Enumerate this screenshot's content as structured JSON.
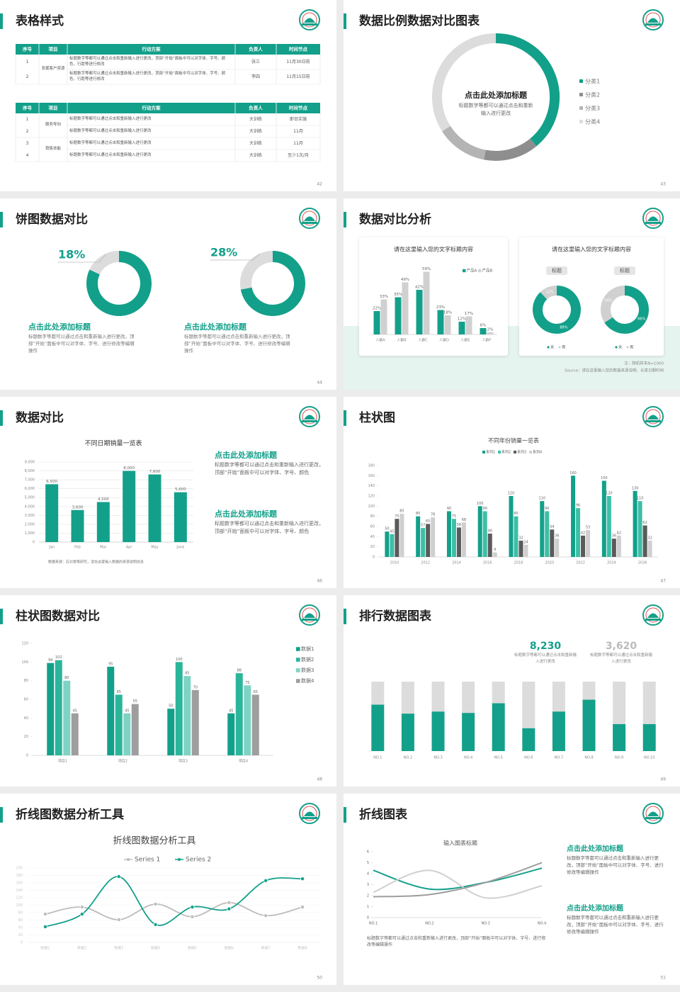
{
  "slides": [
    {
      "title": "表格样式",
      "page": "42",
      "tables": [
        {
          "header": [
            "序号",
            "项目",
            "行动方案",
            "负责人",
            "时间节点"
          ],
          "rows": [
            [
              "1",
              "发掘客户资源",
              "标题数字等都可以通过点击和重新输入进行更改，顶部“开始”面板中可以对字体、字号、颜色、行距等进行修改",
              "张三",
              "11月30日前"
            ],
            [
              "2",
              null,
              "标题数字等都可以通过点击和重新输入进行更改，顶部“开始”面板中可以对字体、字号、颜色、行距等进行修改",
              "李四",
              "11月15日前"
            ]
          ]
        },
        {
          "header": [
            "序号",
            "项目",
            "行动方案",
            "负责人",
            "时间节点"
          ],
          "rows": [
            [
              "1",
              "服务导向",
              "标题数字等都可以通过点击和重新输入进行更改",
              "大训练",
              "即日实施"
            ],
            [
              "2",
              null,
              "标题数字等都可以通过点击和重新输入进行更改",
              "大训练",
              "11月"
            ],
            [
              "3",
              "销售技能",
              "标题数字等都可以通过点击和重新输入进行更改",
              "大训练",
              "11月"
            ],
            [
              "4",
              null,
              "标题数字等都可以通过点击和重新输入进行更改",
              "大训练",
              "至少1次/月"
            ]
          ]
        }
      ]
    },
    {
      "title": "数据比例数据对比图表",
      "page": "43",
      "chart": {
        "type": "donut",
        "center_title": "点击此处添加标题",
        "center_text": "标题数字等都可以通过点击和重新输入进行更改",
        "categories": [
          "分类1",
          "分类2",
          "分类3",
          "分类4"
        ],
        "values": [
          39,
          14,
          13,
          34
        ],
        "colors": [
          "#13a08a",
          "#8e8e8e",
          "#b4b4b4",
          "#dcdcdc"
        ]
      }
    },
    {
      "title": "饼图数据对比",
      "page": "44",
      "color": "#13a08a",
      "value_color": "#dcdcdc",
      "items": [
        {
          "value": 18,
          "value_label": "18%",
          "heading": "点击此处添加标题",
          "text": "标题数字等都可以通过点击和重新输入进行更改，顶部“开始”面板中可以对字体、字号、进行修改等编辑操作"
        },
        {
          "value": 28,
          "value_label": "28%",
          "heading": "点击此处添加标题",
          "text": "标题数字等都可以通过点击和重新输入进行更改，顶部“开始”面板中可以对字体、字号、进行修改等编辑操作"
        }
      ]
    },
    {
      "title": "数据对比分析",
      "page": "45",
      "bar_chart": {
        "type": "bar",
        "title": "请在这里输入您的文字标题内容",
        "categories": [
          "人群A",
          "人群B",
          "人群C",
          "人群D",
          "人群E",
          "人群F"
        ],
        "series": [
          {
            "name": "产品A",
            "color": "#13a08a",
            "values": [
              22,
              35,
              42,
              23,
              12,
              6
            ],
            "value_labels": [
              "22%",
              "35%",
              "42%",
              "23%",
              "12%",
              "6%"
            ]
          },
          {
            "name": "产品B",
            "color": "#d0d0d0",
            "values": [
              33,
              49,
              59,
              18,
              17,
              2
            ],
            "value_labels": [
              "33%",
              "49%",
              "59%",
              "18%",
              "17%",
              "2%"
            ]
          }
        ],
        "ylim": [
          0,
          60
        ]
      },
      "donut_chart": {
        "type": "donut",
        "title": "请在这里输入您的文字标题内容",
        "colors": [
          "#13a08a",
          "#d0d0d0"
        ],
        "charts": [
          {
            "label": "标题",
            "categories": [
              "女",
              "男"
            ],
            "values": [
              88,
              12
            ],
            "value_labels": [
              "88%",
              "12%"
            ]
          },
          {
            "label": "标题",
            "categories": [
              "女",
              "男"
            ],
            "values": [
              66,
              34
            ],
            "value_labels": [
              "66%",
              "34%"
            ]
          }
        ]
      },
      "note": "注：随机样本N=1000",
      "source": "Source：请在这里输入您的数据来源说明，长查日期时间"
    },
    {
      "title": "数据对比",
      "page": "46",
      "chart": {
        "type": "bar",
        "title": "不同日期销量一览表",
        "categories": [
          "Jan",
          "Feb",
          "Mar",
          "Apr",
          "May",
          "June"
        ],
        "values": [
          6500,
          3600,
          4500,
          8000,
          7600,
          5600
        ],
        "value_labels": [
          "6,500",
          "3,600",
          "4,500",
          "8,000",
          "7,600",
          "5,600"
        ],
        "color": "#13a08a",
        "ylim": [
          0,
          9000
        ],
        "yticks": [
          0,
          {
            "value": 1000,
            "label": "1,000"
          },
          {
            "value": 2000,
            "label": "2,000"
          },
          {
            "value": 3000,
            "label": "3,000"
          },
          {
            "value": 4000,
            "label": "4,000"
          },
          {
            "value": 5000,
            "label": "5,000"
          },
          {
            "value": 6000,
            "label": "6,000"
          },
          {
            "value": 7000,
            "label": "7,000"
          },
          {
            "value": 8000,
            "label": "8,000"
          },
          {
            "value": 9000,
            "label": "9,000"
          }
        ],
        "grid": true,
        "source": "数据来源：应对者等研究，请在这里输入数据的来源说明信息"
      },
      "blocks": [
        {
          "heading": "点击此处添加标题",
          "text": "标题数字等都可以通过点击和重新输入进行更改，顶部“开始”面板中可以对字体、字号、颜色"
        },
        {
          "heading": "点击此处添加标题",
          "text": "标题数字等都可以通过点击和重新输入进行更改，顶部“开始”面板中可以对字体、字号、颜色"
        }
      ]
    },
    {
      "title": "柱状图",
      "page": "47",
      "chart": {
        "type": "bar",
        "title": "不同年份销量一览表",
        "categories": [
          "2010",
          "2012",
          "2014",
          "2016",
          "2018",
          "2020",
          "2022",
          "2024",
          "2026"
        ],
        "series": [
          {
            "name": "系列1",
            "color": "#13a08a",
            "values": [
              50,
              80,
              90,
              100,
              120,
              110,
              160,
              150,
              130
            ]
          },
          {
            "name": "系列2",
            "color": "#3cbfa6",
            "values": [
              45,
              57,
              75,
              90,
              80,
              90,
              96,
              120,
              110
            ]
          },
          {
            "name": "系列3",
            "color": "#5a5a5a",
            "values": [
              75,
              65,
              58,
              46,
              32,
              54,
              42,
              36,
              62
            ]
          },
          {
            "name": "系列4",
            "color": "#cfcfcf",
            "values": [
              85,
              78,
              68,
              9,
              24,
              36,
              53,
              42,
              32
            ]
          }
        ],
        "ylim": [
          0,
          180
        ],
        "yticks": [
          0,
          20,
          40,
          60,
          80,
          100,
          120,
          140,
          160,
          180
        ]
      }
    },
    {
      "title": "柱状图数据对比",
      "page": "48",
      "chart": {
        "type": "bar",
        "categories": [
          "项目1",
          "项目2",
          "项目3",
          "项目4"
        ],
        "series": [
          {
            "name": "数据1",
            "color": "#13a08a",
            "values": [
              99,
              95,
              50,
              45
            ]
          },
          {
            "name": "数据2",
            "color": "#2bb59a",
            "values": [
              102,
              65,
              100,
              88
            ]
          },
          {
            "name": "数据3",
            "color": "#7fd3c4",
            "values": [
              80,
              45,
              85,
              75
            ]
          },
          {
            "name": "数据4",
            "color": "#9e9e9e",
            "values": [
              45,
              55,
              70,
              65
            ]
          }
        ],
        "ylim": [
          0,
          120
        ],
        "yticks": [
          0,
          20,
          40,
          60,
          80,
          100,
          120
        ]
      }
    },
    {
      "title": "排行数据图表",
      "page": "49",
      "stats": [
        {
          "value": "8,230",
          "text": "标题数字等都可以通过点击和重新输入进行更改",
          "color": "#13a08a"
        },
        {
          "value": "3,620",
          "text": "标题数字等都可以通过点击和重新输入进行更改",
          "color": "#bbbbbb"
        }
      ],
      "chart": {
        "type": "stacked_bar",
        "categories": [
          "NO.1",
          "NO.2",
          "NO.3",
          "NO.4",
          "NO.5",
          "NO.6",
          "NO.7",
          "NO.8",
          "NO.9",
          "NO.10"
        ],
        "series": [
          {
            "color": "#13a08a",
            "values": [
              67,
              54,
              57,
              55,
              69,
              33,
              57,
              74,
              39,
              39
            ]
          },
          {
            "color": "#dcdcdc",
            "values": [
              33,
              46,
              43,
              45,
              31,
              67,
              43,
              26,
              61,
              61
            ]
          }
        ],
        "ylim": [
          0,
          100
        ]
      }
    },
    {
      "title": "折线图数据分析工具",
      "page": "50",
      "chart": {
        "type": "line",
        "title": "折线图数据分析工具",
        "categories": [
          "数据1",
          "数据2",
          "数据3",
          "数据4",
          "数据5",
          "数据6",
          "数据7",
          "数据8"
        ],
        "series": [
          {
            "name": "Series 1",
            "color": "#bdbdbd",
            "values": [
              76,
              95,
              61,
              103,
              69,
              107,
              72,
              95
            ]
          },
          {
            "name": "Series 2",
            "color": "#13a08a",
            "values": [
              42,
              76,
              177,
              48,
              95,
              90,
              166,
              171
            ]
          }
        ],
        "ylim": [
          0,
          200
        ],
        "yticks": [
          0,
          20,
          40,
          60,
          80,
          100,
          120,
          140,
          160,
          180,
          200
        ],
        "grid": true
      }
    },
    {
      "title": "折线图表",
      "page": "51",
      "chart": {
        "type": "line",
        "title": "输入图表标题",
        "categories": [
          "NO.1",
          "NO.2",
          "NO.3",
          "NO.4"
        ],
        "series": [
          {
            "color": "#13a08a",
            "values": [
              4.3,
              2.6,
              3.2,
              4.5
            ]
          },
          {
            "color": "#d0d0d0",
            "values": [
              2.3,
              4.3,
              1.8,
              2.9
            ]
          },
          {
            "color": "#9e9e9e",
            "values": [
              1.9,
              2.1,
              3.2,
              5
            ]
          }
        ],
        "ylim": [
          0,
          6
        ],
        "yticks": [
          0,
          1,
          2,
          3,
          4,
          5,
          6
        ]
      },
      "blocks": [
        {
          "heading": "点击此处添加标题",
          "text": "标题数字等都可以通过点击和重新输入进行更改，顶部“开始”面板中可以对字体、字号、进行修改等编辑操作"
        },
        {
          "heading": "点击此处添加标题",
          "text": "标题数字等都可以通过点击和重新输入进行更改，顶部“开始”面板中可以对字体、字号、进行修改等编辑操作"
        }
      ],
      "note": "标题数字等都可以通过点击和重新输入进行更改，顶部“开始”面板中可以对字体、字号、进行修改等编辑操作"
    }
  ]
}
